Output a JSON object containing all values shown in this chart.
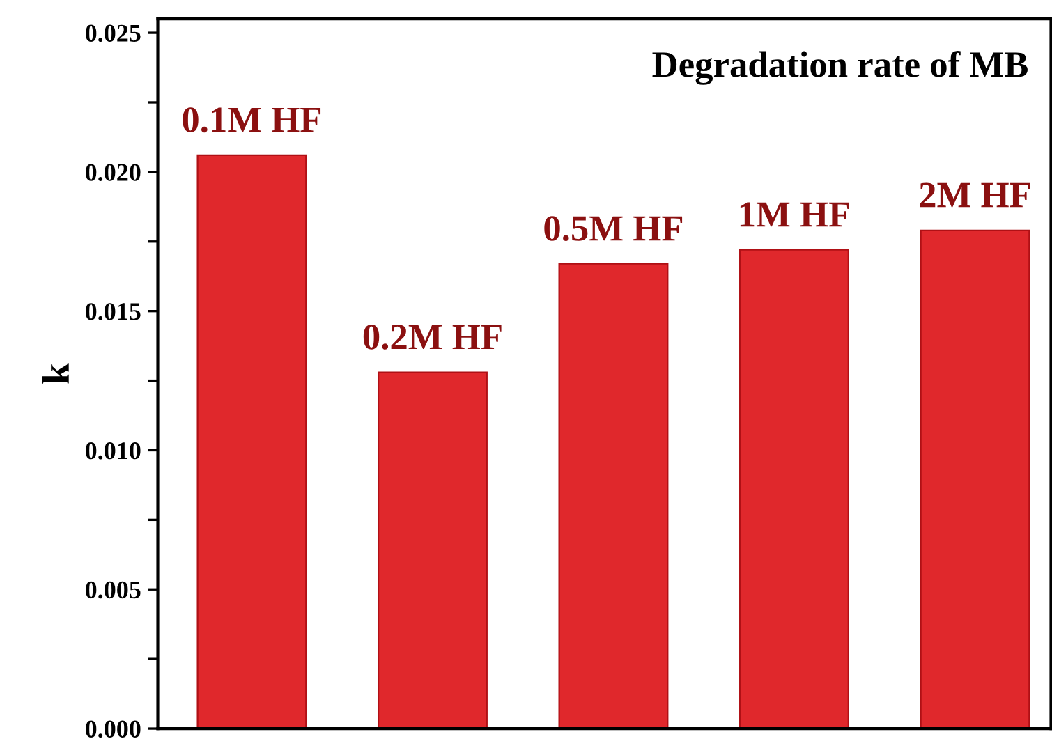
{
  "chart_data": {
    "type": "bar",
    "title": "Degradation rate of MB",
    "ylabel": "k",
    "categories": [
      "0.1M HF",
      "0.2M HF",
      "0.5M HF",
      "1M HF",
      "2M HF"
    ],
    "values": [
      0.0206,
      0.0128,
      0.0167,
      0.0172,
      0.0179
    ],
    "color": "#e0282c",
    "ylim": [
      0,
      0.0255
    ],
    "yticks": [
      {
        "value": 0,
        "label": "0.000"
      },
      {
        "value": 0.0025,
        "label": null
      },
      0.005,
      {
        "value": 0.0075,
        "label": null
      },
      {
        "value": 0.01,
        "label": "0.010"
      },
      {
        "value": 0.0125,
        "label": null
      },
      0.015,
      {
        "value": 0.0175,
        "label": null
      },
      {
        "value": 0.02,
        "label": "0.020"
      },
      {
        "value": 0.0225,
        "label": null
      },
      0.025
    ],
    "grid": false,
    "legend": false
  }
}
